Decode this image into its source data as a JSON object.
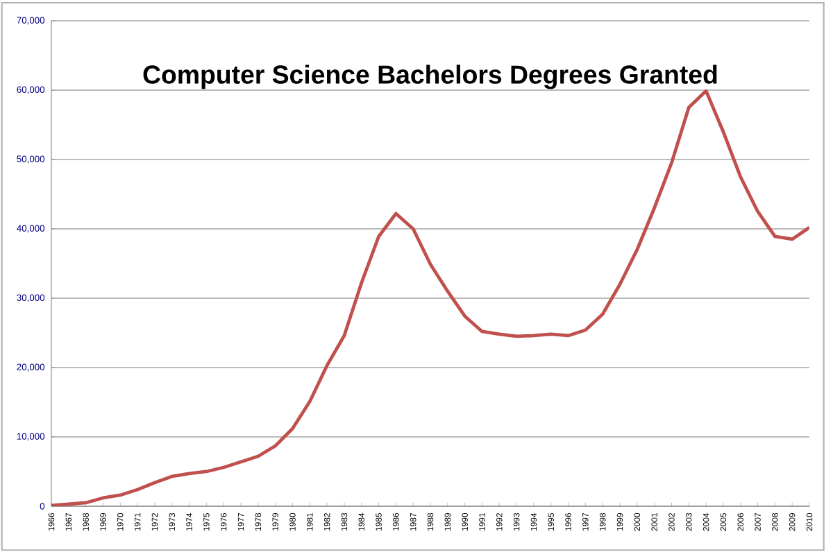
{
  "chart_data": {
    "type": "line",
    "title": "Computer Science Bachelors Degrees Granted",
    "categories": [
      "1966",
      "1967",
      "1968",
      "1969",
      "1970",
      "1971",
      "1972",
      "1973",
      "1974",
      "1975",
      "1976",
      "1977",
      "1978",
      "1979",
      "1980",
      "1981",
      "1982",
      "1983",
      "1984",
      "1985",
      "1986",
      "1987",
      "1988",
      "1989",
      "1990",
      "1991",
      "1992",
      "1993",
      "1994",
      "1995",
      "1996",
      "1997",
      "1998",
      "1999",
      "2000",
      "2001",
      "2002",
      "2003",
      "2004",
      "2005",
      "2006",
      "2007",
      "2008",
      "2009",
      "2010"
    ],
    "series": [
      {
        "color": "#c0504d",
        "values": [
          100,
          300,
          500,
          1200,
          1600,
          2400,
          3400,
          4300,
          4700,
          5000,
          5600,
          6400,
          7200,
          8700,
          11200,
          15100,
          20300,
          24600,
          32200,
          38900,
          42200,
          40000,
          34900,
          31000,
          27400,
          25200,
          24800,
          24500,
          24600,
          24800,
          24600,
          25400,
          27700,
          32000,
          37000,
          43000,
          49500,
          57500,
          59900,
          54000,
          47500,
          42500,
          38900,
          38500,
          40200
        ]
      }
    ],
    "ylim": [
      0,
      70000
    ],
    "yticks": [
      {
        "value": 0,
        "label": "0"
      },
      {
        "value": 10000,
        "label": "10,000"
      },
      {
        "value": 20000,
        "label": "20,000"
      },
      {
        "value": 30000,
        "label": "30,000"
      },
      {
        "value": 40000,
        "label": "40,000"
      },
      {
        "value": 50000,
        "label": "50,000"
      },
      {
        "value": 60000,
        "label": "60,000"
      },
      {
        "value": 70000,
        "label": "70,000"
      }
    ],
    "grid": "y",
    "legend": false,
    "marker": "none",
    "line_style": "solid"
  }
}
